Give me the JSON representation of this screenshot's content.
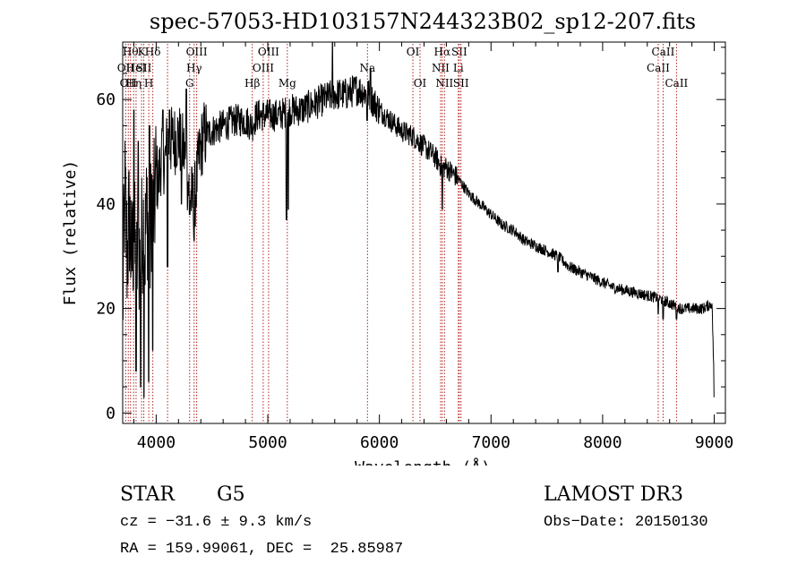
{
  "chart_data": {
    "type": "line",
    "title": "spec-57053-HD103157N244323B02_sp12-207.fits",
    "xlabel": "Wavelength (Å)",
    "ylabel": "Flux (relative)",
    "xlim": [
      3700,
      9100
    ],
    "ylim": [
      -2,
      71
    ],
    "xticks": [
      4000,
      5000,
      6000,
      7000,
      8000,
      9000
    ],
    "yticks": [
      0,
      20,
      40,
      60
    ],
    "grid": false,
    "line_color": "#000000",
    "marker_color": "#b22222",
    "series": [
      {
        "name": "flux",
        "anchors": [
          [
            3700,
            20
          ],
          [
            3720,
            42
          ],
          [
            3740,
            30
          ],
          [
            3760,
            38
          ],
          [
            3780,
            28
          ],
          [
            3800,
            35
          ],
          [
            3820,
            25
          ],
          [
            3840,
            34
          ],
          [
            3860,
            26
          ],
          [
            3880,
            38
          ],
          [
            3900,
            32
          ],
          [
            3920,
            40
          ],
          [
            3940,
            28
          ],
          [
            3960,
            42
          ],
          [
            3980,
            38
          ],
          [
            4000,
            46
          ],
          [
            4020,
            44
          ],
          [
            4050,
            50
          ],
          [
            4080,
            48
          ],
          [
            4100,
            52
          ],
          [
            4150,
            52
          ],
          [
            4200,
            53
          ],
          [
            4250,
            50
          ],
          [
            4300,
            42
          ],
          [
            4340,
            40
          ],
          [
            4380,
            48
          ],
          [
            4420,
            53
          ],
          [
            4500,
            54
          ],
          [
            4600,
            55
          ],
          [
            4700,
            56
          ],
          [
            4800,
            56
          ],
          [
            4860,
            55
          ],
          [
            4900,
            57
          ],
          [
            5000,
            57
          ],
          [
            5100,
            57
          ],
          [
            5200,
            58
          ],
          [
            5300,
            58
          ],
          [
            5400,
            59
          ],
          [
            5500,
            60
          ],
          [
            5600,
            61
          ],
          [
            5700,
            61
          ],
          [
            5800,
            62
          ],
          [
            5900,
            61
          ],
          [
            6000,
            58
          ],
          [
            6100,
            56
          ],
          [
            6200,
            54
          ],
          [
            6300,
            53
          ],
          [
            6400,
            51
          ],
          [
            6500,
            49
          ],
          [
            6560,
            47
          ],
          [
            6600,
            47
          ],
          [
            6700,
            45
          ],
          [
            6800,
            42
          ],
          [
            6900,
            40
          ],
          [
            7000,
            38
          ],
          [
            7100,
            36
          ],
          [
            7200,
            35
          ],
          [
            7300,
            33
          ],
          [
            7400,
            32
          ],
          [
            7500,
            31
          ],
          [
            7600,
            30
          ],
          [
            7700,
            28
          ],
          [
            7800,
            27
          ],
          [
            7900,
            26
          ],
          [
            8000,
            25
          ],
          [
            8100,
            24
          ],
          [
            8200,
            23.5
          ],
          [
            8300,
            23
          ],
          [
            8400,
            22.5
          ],
          [
            8500,
            22
          ],
          [
            8600,
            21
          ],
          [
            8700,
            20
          ],
          [
            8800,
            20
          ],
          [
            8900,
            20
          ],
          [
            8980,
            21
          ],
          [
            9000,
            5
          ]
        ],
        "dips": [
          [
            3820,
            8
          ],
          [
            3860,
            5
          ],
          [
            3890,
            3
          ],
          [
            3934,
            6
          ],
          [
            3969,
            12
          ],
          [
            4102,
            28
          ],
          [
            4227,
            40
          ],
          [
            4300,
            38
          ],
          [
            4340,
            33
          ],
          [
            5167,
            37
          ],
          [
            5183,
            39
          ],
          [
            5890,
            56
          ],
          [
            6563,
            39
          ],
          [
            7600,
            27
          ],
          [
            8498,
            19
          ],
          [
            8542,
            18
          ],
          [
            8662,
            18
          ],
          [
            9000,
            3
          ]
        ],
        "peaks": [
          [
            3800,
            58
          ],
          [
            3840,
            52
          ],
          [
            3940,
            55
          ],
          [
            4060,
            58
          ],
          [
            4120,
            58
          ],
          [
            4270,
            62
          ],
          [
            5580,
            71
          ],
          [
            5920,
            66
          ]
        ]
      }
    ],
    "line_markers": [
      {
        "wavelength": 3727,
        "label": "OII",
        "row": 2
      },
      {
        "wavelength": 3750,
        "label": "OII",
        "row": 3
      },
      {
        "wavelength": 3770,
        "label": "Hθ",
        "row": 1
      },
      {
        "wavelength": 3798,
        "label": "Hη",
        "row": 3
      },
      {
        "wavelength": 3820,
        "label": "HeI",
        "row": 2
      },
      {
        "wavelength": 3869,
        "label": "K",
        "row": 1
      },
      {
        "wavelength": 3889,
        "label": "SII",
        "row": 2
      },
      {
        "wavelength": 3934,
        "label": "H",
        "row": 3
      },
      {
        "wavelength": 3970,
        "label": "Hδ",
        "row": 1
      },
      {
        "wavelength": 4102,
        "label": "",
        "row": 0
      },
      {
        "wavelength": 4300,
        "label": "G",
        "row": 3
      },
      {
        "wavelength": 4340,
        "label": "Hγ",
        "row": 2
      },
      {
        "wavelength": 4363,
        "label": "OIII",
        "row": 1
      },
      {
        "wavelength": 4861,
        "label": "Hβ",
        "row": 3
      },
      {
        "wavelength": 4959,
        "label": "OIII",
        "row": 2
      },
      {
        "wavelength": 5007,
        "label": "OIII",
        "row": 1
      },
      {
        "wavelength": 5175,
        "label": "Mg",
        "row": 3
      },
      {
        "wavelength": 5893,
        "label": "Na",
        "row": 2
      },
      {
        "wavelength": 6300,
        "label": "OI",
        "row": 1
      },
      {
        "wavelength": 6364,
        "label": "OI",
        "row": 3
      },
      {
        "wavelength": 6548,
        "label": "NII",
        "row": 2
      },
      {
        "wavelength": 6563,
        "label": "Hα",
        "row": 1
      },
      {
        "wavelength": 6583,
        "label": "NII",
        "row": 3
      },
      {
        "wavelength": 6707,
        "label": "Li",
        "row": 2
      },
      {
        "wavelength": 6716,
        "label": "SII",
        "row": 1
      },
      {
        "wavelength": 6731,
        "label": "SII",
        "row": 3
      },
      {
        "wavelength": 8498,
        "label": "CaII",
        "row": 2
      },
      {
        "wavelength": 8542,
        "label": "CaII",
        "row": 1
      },
      {
        "wavelength": 8662,
        "label": "CaII",
        "row": 3
      }
    ]
  },
  "info": {
    "class": "STAR",
    "subclass": "G5",
    "survey": "LAMOST DR3",
    "redshift": "cz = −31.6 ± 9.3 km/s",
    "obs_date": "Obs−Date: 20150130",
    "coords": "RA = 159.99061, DEC =  25.85987"
  }
}
